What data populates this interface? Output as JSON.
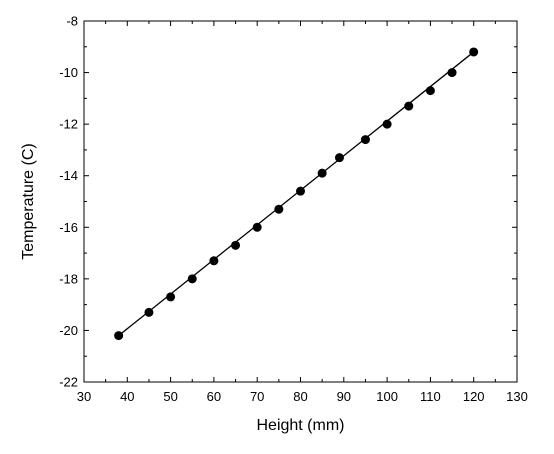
{
  "chart_data": {
    "type": "scatter",
    "title": "",
    "xlabel": "Height (mm)",
    "ylabel": "Temperature (C)",
    "xlim": [
      30,
      130
    ],
    "ylim": [
      -22,
      -8
    ],
    "x_ticks": [
      30,
      40,
      50,
      60,
      70,
      80,
      90,
      100,
      110,
      120,
      130
    ],
    "y_ticks": [
      -22,
      -20,
      -18,
      -16,
      -14,
      -12,
      -10,
      -8
    ],
    "grid": false,
    "legend": "none",
    "series": [
      {
        "x": [
          38,
          45,
          50,
          55,
          60,
          65,
          70,
          75,
          80,
          85,
          89,
          95,
          100,
          105,
          110,
          115,
          120
        ],
        "y": [
          -20.2,
          -19.3,
          -18.7,
          -18.0,
          -17.3,
          -16.7,
          -16.0,
          -15.3,
          -14.6,
          -13.9,
          -13.3,
          -12.6,
          -12.0,
          -11.3,
          -10.7,
          -10.0,
          -9.2
        ],
        "marker": "circle",
        "color": "#000000"
      }
    ],
    "fit_line": {
      "x": [
        38,
        120
      ],
      "y": [
        -20.2,
        -9.2
      ],
      "color": "#000000"
    }
  }
}
